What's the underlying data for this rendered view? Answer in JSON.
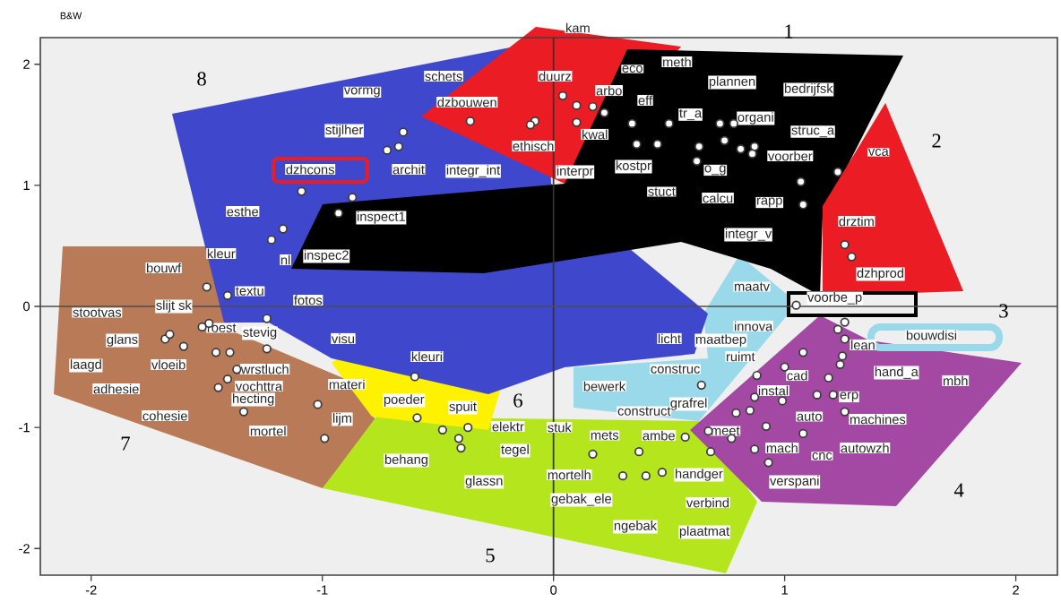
{
  "chart_data": {
    "type": "scatter",
    "title": "B&W",
    "xlim": [
      -2.22,
      2.18
    ],
    "ylim": [
      -2.22,
      2.22
    ],
    "xticks": [
      -2,
      -1,
      0,
      1,
      2
    ],
    "yticks": [
      -2,
      -1,
      0,
      1,
      2
    ],
    "marker": "circle",
    "color": "#3c3c3c",
    "ref_lines": [
      {
        "axis": "x",
        "value": 0
      },
      {
        "axis": "y",
        "value": 0
      }
    ],
    "x": [
      -0.08,
      -0.36,
      -0.1,
      0.04,
      0.1,
      0.17,
      0.22,
      0.1,
      -0.65,
      -0.67,
      -0.72,
      -1.09,
      -0.87,
      -0.93,
      -1.17,
      -1.22,
      -1.5,
      -1.41,
      -1.24,
      -1.49,
      -1.52,
      -1.68,
      -1.66,
      -1.6,
      -1.46,
      -1.24,
      -1.37,
      -1.41,
      -1.45,
      -1.34,
      -1.02,
      -0.99,
      -0.6,
      -0.59,
      -0.37,
      -0.48,
      -0.41,
      -0.4,
      0.17,
      0.37,
      0.57,
      0.3,
      0.4,
      0.47,
      0.68,
      1.05,
      1.26,
      1.23,
      1.26,
      1.25,
      1.24,
      1.08,
      1.0,
      0.88,
      1.19,
      0.64,
      1.14,
      1.26,
      0.79,
      0.85,
      0.67,
      0.87,
      0.93,
      1.08,
      0.92,
      0.34,
      0.5,
      0.72,
      0.78,
      0.74,
      0.36,
      0.45,
      0.63,
      0.62,
      0.81,
      0.87,
      0.86,
      1.07,
      1.23,
      1.08,
      1.26,
      1.29,
      -1.4,
      1.21,
      0.99,
      0.87,
      0.77
    ],
    "values": [
      1.53,
      1.53,
      1.5,
      1.74,
      1.66,
      1.65,
      1.6,
      1.52,
      1.44,
      1.32,
      1.29,
      0.95,
      0.9,
      0.77,
      0.64,
      0.55,
      0.16,
      0.09,
      -0.1,
      -0.14,
      -0.17,
      -0.27,
      -0.23,
      -0.33,
      -0.38,
      -0.35,
      -0.52,
      -0.6,
      -0.67,
      -0.87,
      -0.81,
      -1.09,
      -0.58,
      -0.92,
      -1.0,
      -1.02,
      -1.09,
      -1.17,
      -1.22,
      -1.2,
      -1.08,
      -1.4,
      -1.4,
      -1.37,
      -1.2,
      0.01,
      -0.13,
      -0.19,
      -0.27,
      -0.41,
      -0.48,
      -0.38,
      -0.5,
      -0.57,
      -0.59,
      -0.65,
      -0.73,
      -0.87,
      -0.88,
      -0.86,
      -1.03,
      -1.18,
      -1.29,
      -1.05,
      -0.99,
      1.51,
      1.51,
      1.51,
      1.51,
      1.37,
      1.34,
      1.34,
      1.32,
      1.2,
      1.3,
      1.32,
      1.26,
      1.03,
      1.11,
      0.84,
      0.51,
      0.41,
      -0.38,
      -0.73,
      -0.78,
      -0.75,
      -1.09
    ],
    "annotations": [
      "schets",
      "dzbouwen",
      "ethisch",
      "duurz",
      "kam",
      "arbo",
      "eco",
      "kwal",
      "interpr",
      "vormg",
      "archit",
      "stijlher",
      "dzhcons",
      "integr_int",
      "inspect1",
      "esthe",
      "kleur",
      "nl",
      "inspec2",
      "bouwf",
      "textu",
      "fotos",
      "stootvas",
      "slijt sk",
      "roest",
      "glans",
      "laagd",
      "vloeib",
      "adhesie",
      "stevig",
      "visu",
      "wrstluch",
      "vochttra",
      "hecting",
      "cohesie",
      "lijm",
      "mortel",
      "materi",
      "kleuri",
      "poeder",
      "spuit",
      "elektr",
      "tegel",
      "behang",
      "glassn",
      "stuk",
      "mets",
      "ambe",
      "mortelh",
      "gebak_ele",
      "handger",
      "verbind",
      "ngebak",
      "plaatmat",
      "maatv",
      "voorbe_p",
      "innova",
      "bouwdisi",
      "lean",
      "hand_a",
      "mbh",
      "cad",
      "instal",
      "ruimt",
      "erp",
      "construc",
      "auto",
      "machines",
      "grafrel",
      "construct",
      "meet",
      "mach",
      "cnc",
      "autowzh",
      "verspani",
      "licht",
      "maatbep",
      "bewerk",
      "eff",
      "meth",
      "plannen",
      "organi",
      "tr_a",
      "kostpr",
      "stuct",
      "calcu",
      "o_g",
      "bedrijfsk",
      "voorber",
      "integr_v",
      "struc_a",
      "vca",
      "rapp",
      "drztim",
      "dzhprod",
      "1",
      "2",
      "3",
      "4",
      "5",
      "6",
      "7",
      "8"
    ]
  }
}
